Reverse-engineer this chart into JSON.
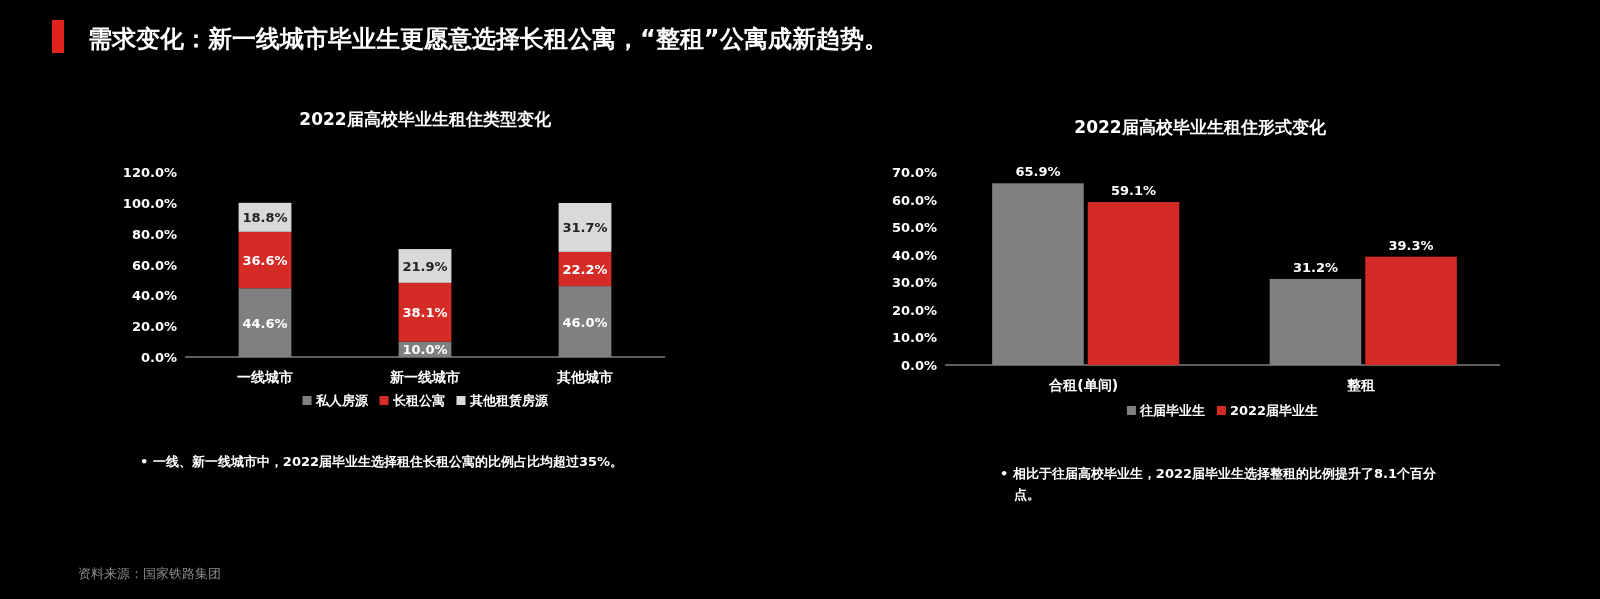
{
  "chart_data": [
    {
      "type": "other",
      "title": "需求变化：新一线城市毕业生更愿意选择长租公寓，“整租”公寓成新趋势。",
      "annotations": [
        "资料来源：国家铁路集团"
      ]
    },
    {
      "type": "bar",
      "stacked": true,
      "title": "2022届高校毕业生租住类型变化",
      "categories": [
        "一线城市",
        "新一线城市",
        "其他城市"
      ],
      "series": [
        {
          "name": "私人房源",
          "color": "#808080",
          "values": [
            44.6,
            10.0,
            46.0
          ],
          "value_labels": [
            "44.6%",
            "10.0%",
            "46.0%"
          ]
        },
        {
          "name": "长租公寓",
          "color": "#d52b26",
          "values": [
            36.6,
            38.1,
            22.2
          ],
          "value_labels": [
            "36.6%",
            "38.1%",
            "22.2%"
          ]
        },
        {
          "name": "其他租赁房源",
          "color": "#d9d9d9",
          "values": [
            18.8,
            21.9,
            31.7
          ],
          "value_labels": [
            "18.8%",
            "21.9%",
            "31.7%"
          ]
        }
      ],
      "ylim": [
        0,
        120
      ],
      "yticks": [
        {
          "value": 0,
          "label": "0.0%"
        },
        {
          "value": 20,
          "label": "20.0%"
        },
        {
          "value": 40,
          "label": "40.0%"
        },
        {
          "value": 60,
          "label": "60.0%"
        },
        {
          "value": 80,
          "label": "80.0%"
        },
        {
          "value": 100,
          "label": "100.0%"
        },
        {
          "value": 120,
          "label": "120.0%"
        }
      ],
      "grid": false,
      "legend": "bottom",
      "annotations": [
        "•  一线、新一线城市中，2022届毕业生选择租住长租公寓的比例占比均超过35%。"
      ]
    },
    {
      "type": "bar",
      "title": "2022届高校毕业生租住形式变化",
      "categories": [
        "合租(单间)",
        "整租"
      ],
      "series": [
        {
          "name": "往届毕业生",
          "color": "#808080",
          "values": [
            65.9,
            31.2
          ],
          "value_labels": [
            "65.9%",
            "31.2%"
          ]
        },
        {
          "name": "2022届毕业生",
          "color": "#d52b26",
          "values": [
            59.1,
            39.3
          ],
          "value_labels": [
            "59.1%",
            "39.3%"
          ]
        }
      ],
      "ylim": [
        0,
        70
      ],
      "yticks": [
        {
          "value": 0,
          "label": "0.0%"
        },
        {
          "value": 10,
          "label": "10.0%"
        },
        {
          "value": 20,
          "label": "20.0%"
        },
        {
          "value": 30,
          "label": "30.0%"
        },
        {
          "value": 40,
          "label": "40.0%"
        },
        {
          "value": 50,
          "label": "50.0%"
        },
        {
          "value": 60,
          "label": "60.0%"
        },
        {
          "value": 70,
          "label": "70.0%"
        }
      ],
      "grid": false,
      "legend": "bottom",
      "annotations": [
        "•  相比于往届高校毕业生，2022届毕业生选择整租的比例提升了8.1个百分点。"
      ]
    }
  ]
}
